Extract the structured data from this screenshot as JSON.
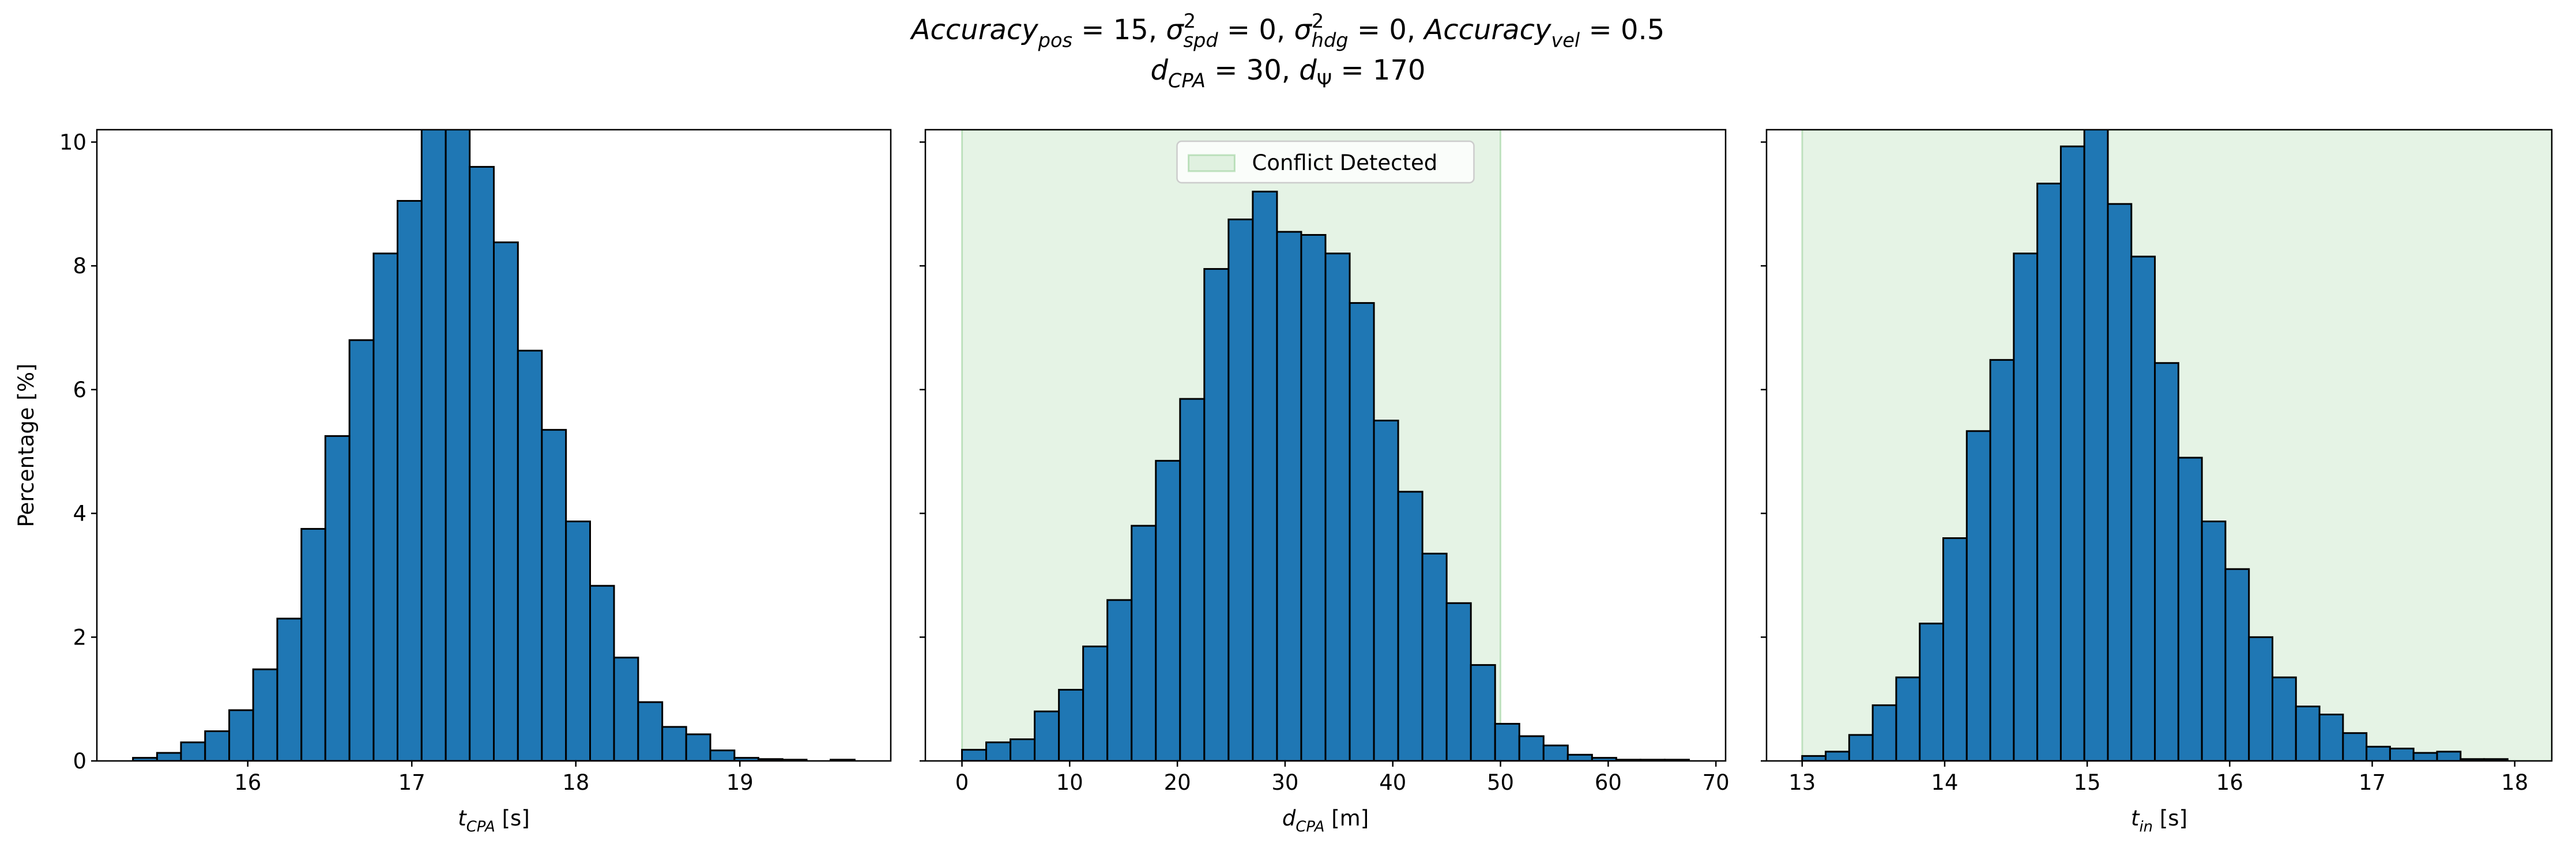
{
  "title": [
    [
      {
        "text": "Accuracy",
        "style": "italic"
      },
      {
        "text": "pos",
        "style": "subscript"
      },
      {
        "text": " = 15, ",
        "style": "normal"
      },
      {
        "text": "σ",
        "style": "italic"
      },
      {
        "text": "2",
        "style": "superscript"
      },
      {
        "text": "spd",
        "style": "subscript"
      },
      {
        "text": " = 0, ",
        "style": "normal"
      },
      {
        "text": "σ",
        "style": "italic"
      },
      {
        "text": "2",
        "style": "superscript"
      },
      {
        "text": "hdg",
        "style": "subscript"
      },
      {
        "text": " = 0, ",
        "style": "normal"
      },
      {
        "text": "Accuracy",
        "style": "italic"
      },
      {
        "text": "vel",
        "style": "subscript"
      },
      {
        "text": " = 0.5",
        "style": "normal"
      }
    ],
    [
      {
        "text": "d",
        "style": "italic"
      },
      {
        "text": "CPA",
        "style": "subscript"
      },
      {
        "text": " = 30, ",
        "style": "normal"
      },
      {
        "text": "d",
        "style": "italic"
      },
      {
        "text": "Ψ",
        "style": "subscript-upright"
      },
      {
        "text": " = 170",
        "style": "normal"
      }
    ]
  ],
  "chart_data": [
    {
      "type": "histogram",
      "ylabel": "Percentage [%]",
      "xlabel": [
        {
          "text": "t",
          "style": "italic"
        },
        {
          "text": "CPA",
          "style": "subscript"
        },
        {
          "text": " [s]",
          "style": "normal"
        }
      ],
      "bins": [
        15.3,
        15.447,
        15.593,
        15.74,
        15.887,
        16.033,
        16.18,
        16.327,
        16.473,
        16.62,
        16.767,
        16.913,
        17.06,
        17.207,
        17.353,
        17.5,
        17.647,
        17.793,
        17.94,
        18.087,
        18.233,
        18.38,
        18.527,
        18.673,
        18.82,
        18.967,
        19.113,
        19.26,
        19.407,
        19.553,
        19.7
      ],
      "values": [
        0.05,
        0.13,
        0.3,
        0.48,
        0.82,
        1.48,
        2.3,
        3.75,
        5.25,
        6.8,
        8.2,
        9.05,
        10.4,
        10.5,
        9.6,
        8.38,
        6.63,
        5.35,
        3.87,
        2.83,
        1.67,
        0.95,
        0.55,
        0.43,
        0.17,
        0.05,
        0.03,
        0.02,
        0,
        0.02
      ],
      "color": "#1f77b4",
      "edgecolor": "#000000",
      "xlim": [
        15.08,
        19.92
      ],
      "xticks": [
        16,
        17,
        18,
        19
      ],
      "ylim": [
        0,
        10.2
      ],
      "yticks": [
        0,
        2,
        4,
        6,
        8,
        10
      ],
      "ytick_labels": true
    },
    {
      "type": "histogram",
      "xlabel": [
        {
          "text": "d",
          "style": "italic"
        },
        {
          "text": "CPA",
          "style": "subscript"
        },
        {
          "text": " [m]",
          "style": "normal"
        }
      ],
      "bins": [
        0,
        2.25,
        4.5,
        6.75,
        9,
        11.25,
        13.5,
        15.75,
        18,
        20.25,
        22.5,
        24.75,
        27,
        29.25,
        31.5,
        33.75,
        36,
        38.25,
        40.5,
        42.75,
        45,
        47.25,
        49.5,
        51.75,
        54,
        56.25,
        58.5,
        60.75,
        63,
        65.25,
        67.5
      ],
      "values": [
        0.18,
        0.3,
        0.35,
        0.8,
        1.15,
        1.85,
        2.6,
        3.8,
        4.85,
        5.85,
        7.95,
        8.75,
        9.2,
        8.55,
        8.5,
        8.2,
        7.4,
        5.5,
        4.35,
        3.35,
        2.55,
        1.55,
        0.6,
        0.4,
        0.25,
        0.1,
        0.05,
        0.02,
        0.02,
        0.02
      ],
      "color": "#1f77b4",
      "edgecolor": "#000000",
      "shade": [
        0,
        50
      ],
      "shade_color": "#2ca02c",
      "shade_label": "Conflict Detected",
      "legend": "upper center",
      "xlim": [
        -3.4,
        70.9
      ],
      "xticks": [
        0,
        10,
        20,
        30,
        40,
        50,
        60,
        70
      ],
      "ylim": [
        0,
        10.2
      ],
      "yticks": [
        0,
        2,
        4,
        6,
        8,
        10
      ],
      "ytick_labels": false
    },
    {
      "type": "histogram",
      "xlabel": [
        {
          "text": "t",
          "style": "italic"
        },
        {
          "text": "in",
          "style": "subscript"
        },
        {
          "text": " [s]",
          "style": "normal"
        }
      ],
      "bins": [
        13,
        13.165,
        13.33,
        13.495,
        13.66,
        13.825,
        13.99,
        14.155,
        14.32,
        14.485,
        14.65,
        14.815,
        14.98,
        15.145,
        15.31,
        15.475,
        15.64,
        15.805,
        15.97,
        16.135,
        16.3,
        16.465,
        16.63,
        16.795,
        16.96,
        17.125,
        17.29,
        17.455,
        17.62,
        17.785,
        17.95
      ],
      "values": [
        0.08,
        0.15,
        0.42,
        0.9,
        1.35,
        2.22,
        3.6,
        5.33,
        6.48,
        8.2,
        9.33,
        9.93,
        10.3,
        9.0,
        8.15,
        6.43,
        4.9,
        3.87,
        3.1,
        2.0,
        1.35,
        0.88,
        0.75,
        0.45,
        0.23,
        0.2,
        0.13,
        0.15,
        0.03,
        0.03
      ],
      "color": "#1f77b4",
      "edgecolor": "#000000",
      "shade": [
        13,
        18.26
      ],
      "shade_color": "#2ca02c",
      "xlim": [
        12.75,
        18.26
      ],
      "xticks": [
        13,
        14,
        15,
        16,
        17,
        18
      ],
      "ylim": [
        0,
        10.2
      ],
      "yticks": [
        0,
        2,
        4,
        6,
        8,
        10
      ],
      "ytick_labels": false
    }
  ]
}
